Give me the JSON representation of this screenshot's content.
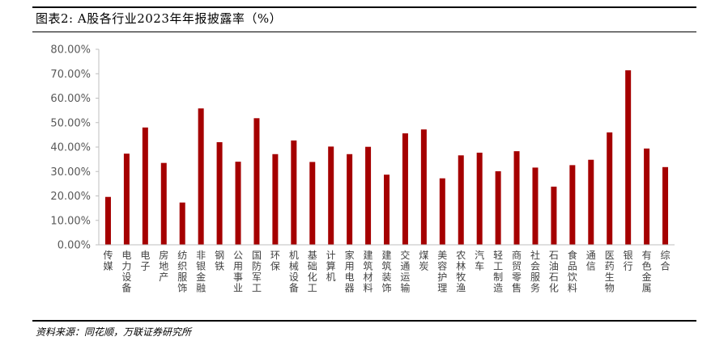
{
  "header": {
    "title": "图表2:  A股各行业2023年年报披露率（%）"
  },
  "footer": {
    "source": "资料来源：同花顺，万联证券研究所"
  },
  "colors": {
    "bar": "#A50000",
    "axis": "#BFBFBF",
    "tick_text": "#595959"
  },
  "chart_data": {
    "type": "bar",
    "title": "",
    "xlabel": "",
    "ylabel": "",
    "ylim": [
      0,
      80
    ],
    "yticks": [
      "0.00%",
      "10.00%",
      "20.00%",
      "30.00%",
      "40.00%",
      "50.00%",
      "60.00%",
      "70.00%",
      "80.00%"
    ],
    "grid": false,
    "categories": [
      "传媒",
      "电力设备",
      "电子",
      "房地产",
      "纺织服饰",
      "非银金融",
      "钢铁",
      "公用事业",
      "国防军工",
      "环保",
      "机械设备",
      "基础化工",
      "计算机",
      "家用电器",
      "建筑材料",
      "建筑装饰",
      "交通运输",
      "煤炭",
      "美容护理",
      "农林牧渔",
      "汽车",
      "轻工制造",
      "商贸零售",
      "社会服务",
      "石油石化",
      "食品饮料",
      "通信",
      "医药生物",
      "银行",
      "有色金属",
      "综合"
    ],
    "values": [
      19.6,
      37.3,
      48.0,
      33.5,
      17.3,
      55.8,
      42.0,
      34.0,
      51.8,
      37.1,
      42.7,
      33.9,
      40.2,
      37.1,
      40.1,
      28.7,
      45.6,
      47.2,
      27.2,
      36.6,
      37.7,
      30.1,
      38.3,
      31.6,
      23.8,
      32.6,
      34.8,
      46.0,
      71.4,
      39.4,
      31.8
    ]
  }
}
